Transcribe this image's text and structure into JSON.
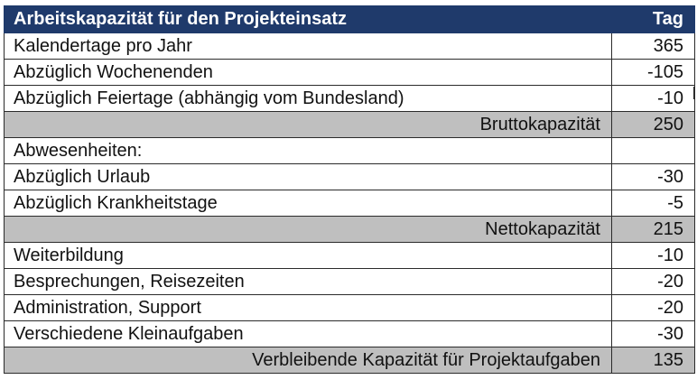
{
  "header": {
    "title": "Arbeitskapazität für den Projekteinsatz",
    "unit": "Tag"
  },
  "rows": [
    {
      "label": "Kalendertage pro Jahr",
      "value": "365",
      "type": "item"
    },
    {
      "label": "Abzüglich Wochenenden",
      "value": "-105",
      "type": "item"
    },
    {
      "label": "Abzüglich Feiertage (abhängig vom Bundesland)",
      "value": "-10",
      "type": "item"
    },
    {
      "label": "Bruttokapazität",
      "value": "250",
      "type": "subtotal"
    },
    {
      "label": "Abwesenheiten:",
      "value": "",
      "type": "item"
    },
    {
      "label": "Abzüglich Urlaub",
      "value": "-30",
      "type": "item"
    },
    {
      "label": "Abzüglich Krankheitstage",
      "value": "-5",
      "type": "item"
    },
    {
      "label": "Nettokapazität",
      "value": "215",
      "type": "subtotal"
    },
    {
      "label": "Weiterbildung",
      "value": "-10",
      "type": "item"
    },
    {
      "label": "Besprechungen, Reisezeiten",
      "value": "-20",
      "type": "item"
    },
    {
      "label": "Administration, Support",
      "value": "-20",
      "type": "item"
    },
    {
      "label": "Verschiedene Kleinaufgaben",
      "value": "-30",
      "type": "item"
    },
    {
      "label": "Verbleibende Kapazität für Projektaufgaben",
      "value": "135",
      "type": "subtotal"
    }
  ],
  "colors": {
    "header_bg": "#1f3a6b",
    "header_text": "#ffffff",
    "subtotal_bg": "#bfbfbf",
    "grid": "#2b2b2b"
  }
}
